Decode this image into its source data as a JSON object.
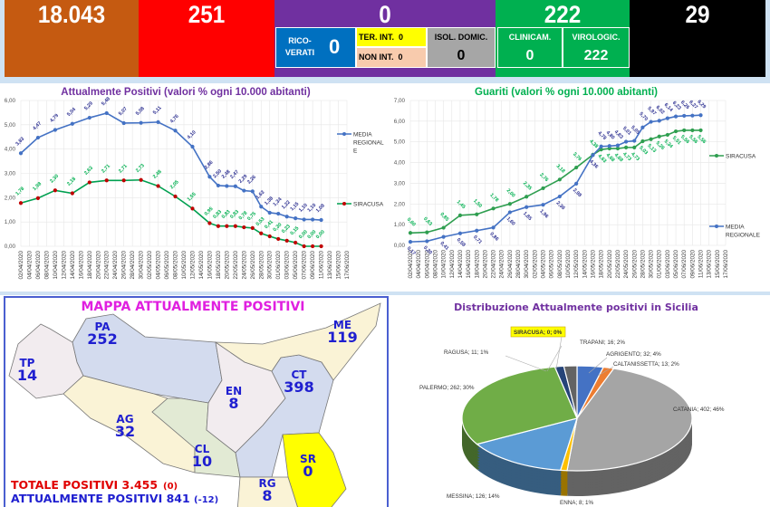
{
  "header": {
    "totale_casi": "18.043",
    "box2": "251",
    "box3": "0",
    "box4": "222",
    "box5": "29",
    "ricoverati_label": "RICO-\nVERATI",
    "ricoverati_value": "0",
    "ter_int_label": "TER. INT.",
    "ter_int_value": "0",
    "non_int_label": "NON INT.",
    "non_int_value": "0",
    "isol_label": "ISOL. DOMIC.",
    "isol_value": "0",
    "clinicam_label": "CLINICAM.",
    "clinicam_value": "0",
    "virologic_label": "VIROLOGIC.",
    "virologic_value": "222",
    "colors": {
      "orange": "#c55a11",
      "red": "#ff0000",
      "purple": "#7030a0",
      "green": "#00b050",
      "black": "#000000",
      "blue": "#0070c0",
      "yellow": "#ffff00",
      "peach": "#f8cbad",
      "gray": "#a6a6a6"
    }
  },
  "chart_data": [
    {
      "type": "line",
      "title": "Attualmente Positivi (valori % ogni 10.000 abitanti)",
      "ylim": [
        0,
        6
      ],
      "yticks": [
        "0,00",
        "1,00",
        "2,00",
        "3,00",
        "4,00",
        "5,00",
        "6,00"
      ],
      "categories": [
        "02/04/2020",
        "04/04/2020",
        "06/04/2020",
        "08/04/2020",
        "10/04/2020",
        "12/04/2020",
        "14/04/2020",
        "16/04/2020",
        "18/04/2020",
        "20/04/2020",
        "22/04/2020",
        "24/04/2020",
        "26/04/2020",
        "28/04/2020",
        "30/04/2020",
        "02/05/2020",
        "04/05/2020",
        "06/05/2020",
        "08/05/2020",
        "10/05/2020",
        "12/05/2020",
        "14/05/2020",
        "16/05/2020",
        "18/05/2020",
        "20/05/2020",
        "22/05/2020",
        "24/05/2020",
        "26/05/2020",
        "28/05/2020",
        "30/05/2020",
        "01/06/2020",
        "03/06/2020",
        "05/06/2020",
        "07/06/2020",
        "09/06/2020",
        "11/06/2020",
        "13/06/2020",
        "15/06/2020",
        "17/06/2020"
      ],
      "legend_position": "right",
      "series": [
        {
          "name": "MEDIA REGIONALE",
          "color": "#4472c4",
          "marker": "#4472c4",
          "label_color": "#2e3192",
          "values": [
            3.83,
            null,
            4.47,
            null,
            4.79,
            null,
            5.04,
            null,
            5.29,
            null,
            5.48,
            null,
            5.07,
            null,
            5.08,
            null,
            5.11,
            null,
            4.76,
            null,
            4.1,
            null,
            2.86,
            2.5,
            2.48,
            2.47,
            2.29,
            2.26,
            1.63,
            1.38,
            1.34,
            1.22,
            1.15,
            1.1,
            1.1,
            1.08,
            null,
            null,
            null
          ]
        },
        {
          "name": "SIRACUSA",
          "color": "#00a050",
          "marker": "#c00000",
          "label_color": "#00b050",
          "values": [
            1.78,
            null,
            1.98,
            null,
            2.3,
            null,
            2.18,
            null,
            2.63,
            null,
            2.71,
            null,
            2.71,
            null,
            2.73,
            null,
            2.48,
            null,
            2.05,
            null,
            1.55,
            null,
            0.95,
            0.83,
            0.83,
            0.83,
            0.78,
            0.75,
            0.53,
            0.41,
            0.3,
            0.23,
            0.15,
            0.0,
            0.0,
            0.0,
            null,
            null,
            null
          ]
        }
      ]
    },
    {
      "type": "line",
      "title": "Guariti (valori % ogni 10.000 abitanti)",
      "ylim": [
        0,
        7
      ],
      "yticks": [
        "0,00",
        "1,00",
        "2,00",
        "3,00",
        "4,00",
        "5,00",
        "6,00",
        "7,00"
      ],
      "categories": [
        "02/04/2020",
        "04/04/2020",
        "06/04/2020",
        "08/04/2020",
        "10/04/2020",
        "12/04/2020",
        "14/04/2020",
        "16/04/2020",
        "18/04/2020",
        "20/04/2020",
        "22/04/2020",
        "24/04/2020",
        "26/04/2020",
        "28/04/2020",
        "30/04/2020",
        "02/05/2020",
        "04/05/2020",
        "06/05/2020",
        "08/05/2020",
        "10/05/2020",
        "12/05/2020",
        "14/05/2020",
        "16/05/2020",
        "18/05/2020",
        "20/05/2020",
        "22/05/2020",
        "24/05/2020",
        "26/05/2020",
        "28/05/2020",
        "30/05/2020",
        "01/06/2020",
        "03/06/2020",
        "05/06/2020",
        "07/06/2020",
        "09/06/2020",
        "11/06/2020",
        "13/06/2020",
        "15/06/2020",
        "17/06/2020"
      ],
      "legend_position": "right",
      "series": [
        {
          "name": "SIRACUSA",
          "color": "#2e9e4f",
          "marker": "#2e9e4f",
          "label_color": "#00b050",
          "values": [
            0.6,
            null,
            0.63,
            null,
            0.85,
            null,
            1.45,
            null,
            1.5,
            null,
            1.78,
            null,
            2.0,
            null,
            2.35,
            null,
            2.76,
            null,
            3.18,
            null,
            3.76,
            null,
            4.38,
            4.63,
            4.68,
            4.68,
            4.73,
            4.73,
            5.03,
            5.13,
            5.26,
            5.34,
            5.51,
            5.56,
            5.56,
            5.56,
            null,
            null,
            null
          ]
        },
        {
          "name": "MEDIA REGIONALE",
          "color": "#4472c4",
          "marker": "#4472c4",
          "label_color": "#2e3192",
          "values": [
            0.17,
            null,
            0.2,
            null,
            0.41,
            null,
            0.58,
            null,
            0.71,
            null,
            0.86,
            null,
            1.6,
            null,
            1.85,
            null,
            1.96,
            null,
            2.36,
            null,
            2.98,
            null,
            4.36,
            4.78,
            4.8,
            4.83,
            5.01,
            5.05,
            5.7,
            5.97,
            6.02,
            6.14,
            6.23,
            6.26,
            6.27,
            6.29,
            null,
            null,
            null
          ]
        }
      ]
    },
    {
      "type": "pie",
      "title": "Distribuzione Attualmente positivi in Sicilia",
      "slices": [
        {
          "name": "AGRIGENTO",
          "value": 32,
          "pct": "4%",
          "color": "#4472c4"
        },
        {
          "name": "CALTANISSETTA",
          "value": 13,
          "pct": "2%",
          "color": "#ed7d31"
        },
        {
          "name": "CATANIA",
          "value": 402,
          "pct": "46%",
          "color": "#a5a5a5"
        },
        {
          "name": "ENNA",
          "value": 8,
          "pct": "1%",
          "color": "#ffc000"
        },
        {
          "name": "MESSINA",
          "value": 126,
          "pct": "14%",
          "color": "#5b9bd5"
        },
        {
          "name": "PALERMO",
          "value": 262,
          "pct": "30%",
          "color": "#70ad47"
        },
        {
          "name": "RAGUSA",
          "value": 11,
          "pct": "1%",
          "color": "#264478"
        },
        {
          "name": "SIRACUSA",
          "value": 0,
          "pct": "0%",
          "color": "#9e480e"
        },
        {
          "name": "TRAPANI",
          "value": 16,
          "pct": "2%",
          "color": "#636363"
        }
      ]
    }
  ],
  "map": {
    "title": "MAPPA ATTUALMENTE POSITIVI",
    "provinces": [
      {
        "code": "TP",
        "value": "14",
        "color": "#f2ecef"
      },
      {
        "code": "PA",
        "value": "252",
        "color": "#d3dbee"
      },
      {
        "code": "AG",
        "value": "32",
        "color": "#faf3d6"
      },
      {
        "code": "CL",
        "value": "10",
        "color": "#e2ead4"
      },
      {
        "code": "EN",
        "value": "8",
        "color": "#f2ecef"
      },
      {
        "code": "CT",
        "value": "398",
        "color": "#d3dbee"
      },
      {
        "code": "ME",
        "value": "119",
        "color": "#faf3d6"
      },
      {
        "code": "SR",
        "value": "0",
        "color": "#ffff00"
      },
      {
        "code": "RG",
        "value": "8",
        "color": "#faf3d6"
      }
    ],
    "totale_label": "TOTALE POSITIVI 3.455",
    "totale_delta": "(0)",
    "attuali_label": "ATTUALMENTE POSITIVI 841",
    "attuali_delta": "(-12)"
  }
}
